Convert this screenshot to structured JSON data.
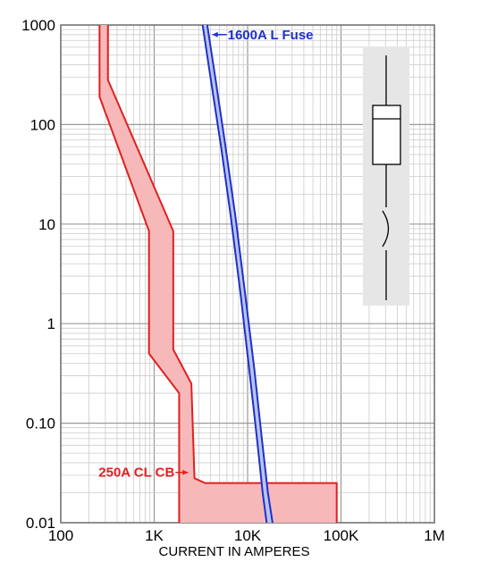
{
  "chart_data": {
    "type": "area",
    "xlabel": "CURRENT IN AMPERES",
    "ylabel": "",
    "xscale": "log",
    "yscale": "log",
    "xlim": [
      100,
      1000000
    ],
    "ylim": [
      0.01,
      1000
    ],
    "grid": true,
    "x_tick_labels": [
      "100",
      "1K",
      "10K",
      "100K",
      "1M"
    ],
    "x_tick_values": [
      100,
      1000,
      10000,
      100000,
      1000000
    ],
    "y_tick_labels": [
      "1000",
      "100",
      "10",
      "1",
      "0.10",
      "0.01"
    ],
    "y_tick_values": [
      1000,
      100,
      10,
      1,
      0.1,
      0.01
    ],
    "series": [
      {
        "name": "250A CL CB",
        "color": "#e02020",
        "fill": "#f6b8b8",
        "min_curve": [
          {
            "x": 260,
            "y": 1000
          },
          {
            "x": 260,
            "y": 190
          },
          {
            "x": 880,
            "y": 8.5
          },
          {
            "x": 880,
            "y": 0.5
          },
          {
            "x": 1850,
            "y": 0.2
          },
          {
            "x": 1850,
            "y": 0.01
          }
        ],
        "max_curve": [
          {
            "x": 320,
            "y": 1000
          },
          {
            "x": 320,
            "y": 280
          },
          {
            "x": 1600,
            "y": 8.5
          },
          {
            "x": 1600,
            "y": 0.55
          },
          {
            "x": 2500,
            "y": 0.25
          },
          {
            "x": 2700,
            "y": 0.028
          },
          {
            "x": 3500,
            "y": 0.025
          },
          {
            "x": 90000,
            "y": 0.025
          },
          {
            "x": 90000,
            "y": 0.01
          }
        ]
      },
      {
        "name": "1600A L Fuse",
        "color": "#2030c8",
        "fill": "#b8c4ef",
        "min_curve": [
          {
            "x": 3300,
            "y": 1000
          },
          {
            "x": 4000,
            "y": 300
          },
          {
            "x": 5200,
            "y": 60
          },
          {
            "x": 6600,
            "y": 12
          },
          {
            "x": 8400,
            "y": 2
          },
          {
            "x": 10400,
            "y": 0.35
          },
          {
            "x": 12600,
            "y": 0.07
          },
          {
            "x": 14500,
            "y": 0.02
          },
          {
            "x": 16000,
            "y": 0.01
          }
        ],
        "max_curve": [
          {
            "x": 3700,
            "y": 1000
          },
          {
            "x": 4500,
            "y": 300
          },
          {
            "x": 5800,
            "y": 60
          },
          {
            "x": 7400,
            "y": 12
          },
          {
            "x": 9400,
            "y": 2
          },
          {
            "x": 11800,
            "y": 0.35
          },
          {
            "x": 14200,
            "y": 0.07
          },
          {
            "x": 16500,
            "y": 0.02
          },
          {
            "x": 18500,
            "y": 0.01
          }
        ]
      }
    ],
    "annotations": [
      {
        "text": "1600A L Fuse",
        "series": "1600A L Fuse",
        "x": 4200,
        "y": 800
      },
      {
        "text": "250A CL CB",
        "series": "250A CL CB",
        "x": 2300,
        "y": 0.032
      }
    ]
  },
  "inset": {
    "icon": "fuse-and-breaker-one-line-symbol",
    "background": "#e6e6e6"
  }
}
